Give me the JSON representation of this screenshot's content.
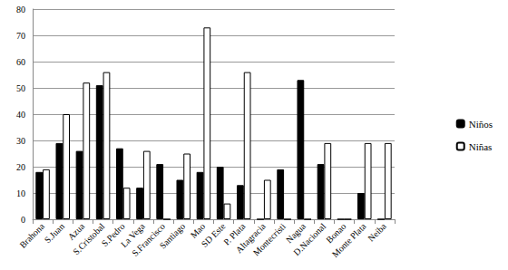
{
  "chart_data": {
    "type": "bar",
    "categories": [
      "Brahona",
      "S.Juan",
      "Azua",
      "S.Cristobal",
      "S.Pedro",
      "La Vega",
      "S.Francisco",
      "Santiago",
      "Mao",
      "SD Este",
      "P. Plata",
      "Altagracia",
      "Montecristi",
      "Nagua",
      "D.Nacional",
      "Bonao",
      "Monte Plata",
      "Neiba"
    ],
    "series": [
      {
        "name": "Niños",
        "color": "#000000",
        "values": [
          18,
          29,
          26,
          51,
          27,
          12,
          21,
          15,
          18,
          20,
          13,
          0,
          19,
          53,
          21,
          0,
          10,
          0
        ]
      },
      {
        "name": "Niñas",
        "color": "#ffffff",
        "values": [
          19,
          40,
          52,
          56,
          12,
          26,
          0,
          25,
          73,
          6,
          56,
          15,
          0,
          0,
          29,
          0,
          29,
          29
        ]
      }
    ],
    "ylim": [
      0,
      80
    ],
    "yticks": [
      0,
      10,
      20,
      30,
      40,
      50,
      60,
      70,
      80
    ],
    "grid": true,
    "legend": "right"
  }
}
